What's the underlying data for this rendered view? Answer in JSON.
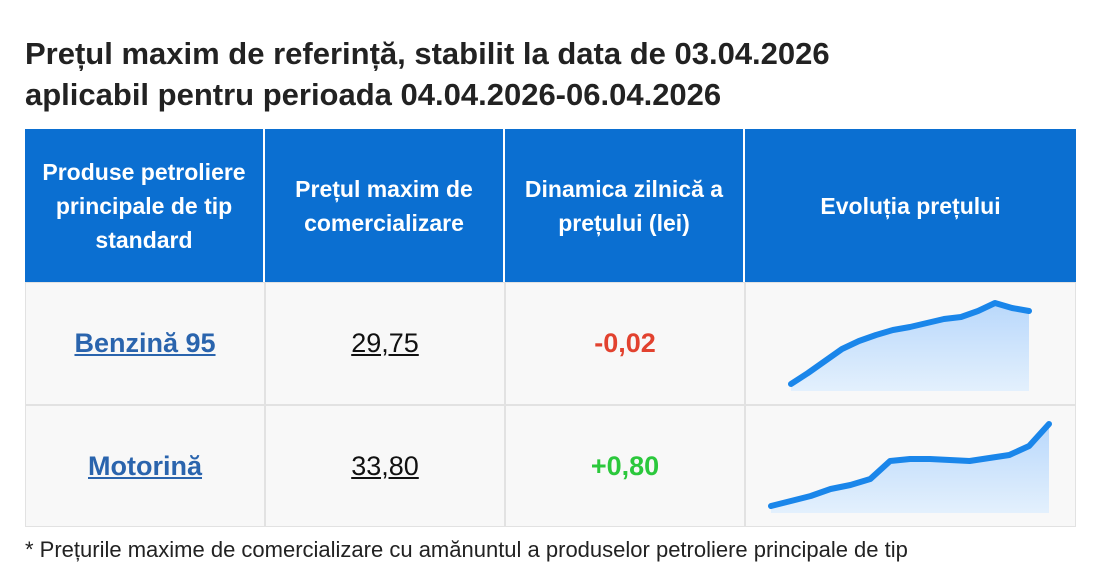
{
  "header": {
    "title_line1": "Prețul maxim de referință, stabilit la data de 03.04.2026",
    "title_line2": "aplicabil pentru perioada 04.04.2026-06.04.2026"
  },
  "table": {
    "columns": [
      "Produse petroliere principale de tip standard",
      "Prețul maxim de comercializare",
      "Dinamica zilnică a prețului (lei)",
      "Evoluția prețului"
    ],
    "rows": [
      {
        "product": "Benzină 95",
        "price": "29,75",
        "change": "-0,02",
        "trend": [
          7,
          18,
          30,
          42,
          50,
          56,
          61,
          64,
          68,
          72,
          74,
          80,
          88,
          83,
          80
        ]
      },
      {
        "product": "Motorină",
        "price": "33,80",
        "change": "+0,80",
        "trend": [
          7,
          12,
          17,
          24,
          28,
          34,
          52,
          54,
          54,
          53,
          52,
          55,
          58,
          67,
          89
        ]
      }
    ]
  },
  "footnote": "* Prețurile maxime de comercializare cu amănuntul a produselor petroliere principale de tip"
}
